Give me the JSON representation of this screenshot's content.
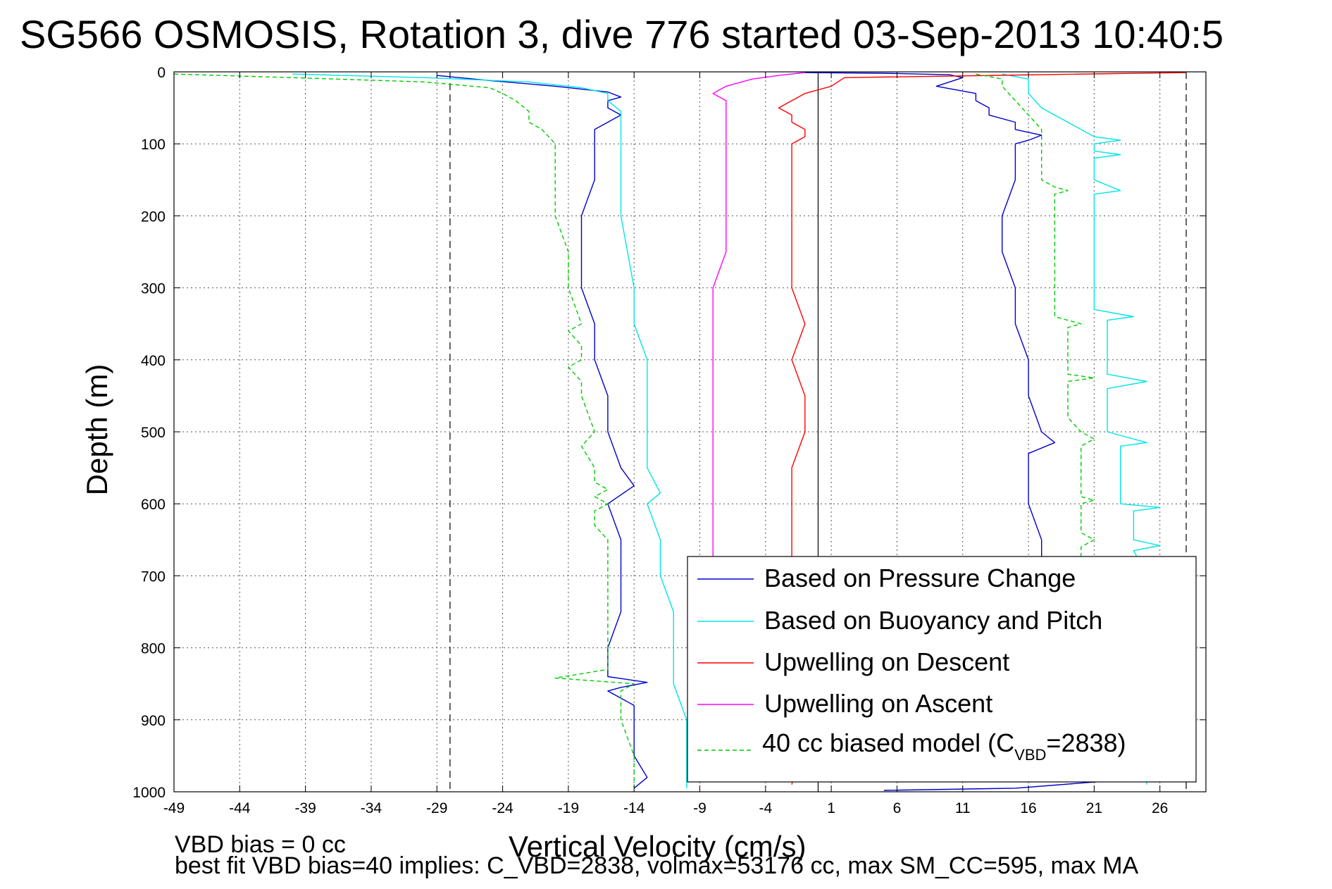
{
  "chart_data": {
    "type": "line",
    "title": "SG566 OSMOSIS, Rotation 3, dive 776 started 03-Sep-2013 10:40:5",
    "xlabel": "Vertical Velocity (cm/s)",
    "ylabel": "Depth (m)",
    "xlim": [
      -49,
      29.5
    ],
    "ylim": [
      0,
      1000
    ],
    "y_reversed": true,
    "grid": true,
    "x_ticks": [
      -49,
      -44,
      -39,
      -34,
      -29,
      -24,
      -19,
      -14,
      -9,
      -4,
      1,
      6,
      11,
      16,
      21,
      26
    ],
    "y_ticks": [
      0,
      100,
      200,
      300,
      400,
      500,
      600,
      700,
      800,
      900,
      1000
    ],
    "reference_lines": {
      "solid_vertical_x": 0,
      "dashed_vertical_x": [
        -28,
        28
      ]
    },
    "legend": {
      "placement": "bottom-right",
      "vbd_label_main": "40 cc biased model (C",
      "vbd_label_sub": "VBD",
      "vbd_label_end": "=2838)"
    },
    "series": [
      {
        "name": "Based on Pressure Change",
        "color": "#0000cc",
        "style": "solid",
        "descent": [
          [
            -29,
            5
          ],
          [
            -25,
            12
          ],
          [
            -20,
            20
          ],
          [
            -16,
            28
          ],
          [
            -15,
            35
          ],
          [
            -16,
            40
          ],
          [
            -16,
            50
          ],
          [
            -15,
            60
          ],
          [
            -16,
            70
          ],
          [
            -17,
            80
          ],
          [
            -17,
            100
          ],
          [
            -17,
            150
          ],
          [
            -18,
            200
          ],
          [
            -18,
            250
          ],
          [
            -18,
            300
          ],
          [
            -17,
            350
          ],
          [
            -17,
            400
          ],
          [
            -16,
            450
          ],
          [
            -16,
            500
          ],
          [
            -15,
            550
          ],
          [
            -14,
            575
          ],
          [
            -16,
            600
          ],
          [
            -15,
            650
          ],
          [
            -15,
            700
          ],
          [
            -15,
            750
          ],
          [
            -16,
            800
          ],
          [
            -16,
            840
          ],
          [
            -13,
            848
          ],
          [
            -15,
            855
          ],
          [
            -16,
            860
          ],
          [
            -14,
            880
          ],
          [
            -14,
            900
          ],
          [
            -14,
            950
          ],
          [
            -13,
            980
          ],
          [
            -14,
            995
          ]
        ],
        "ascent": [
          [
            -1,
            1
          ],
          [
            5,
            2
          ],
          [
            10,
            4
          ],
          [
            11,
            8
          ],
          [
            10,
            14
          ],
          [
            9,
            20
          ],
          [
            12,
            30
          ],
          [
            12,
            40
          ],
          [
            13,
            50
          ],
          [
            13,
            60
          ],
          [
            15,
            70
          ],
          [
            15,
            80
          ],
          [
            17,
            88
          ],
          [
            16,
            95
          ],
          [
            15,
            100
          ],
          [
            15,
            120
          ],
          [
            15,
            150
          ],
          [
            14,
            200
          ],
          [
            14,
            250
          ],
          [
            15,
            300
          ],
          [
            15,
            350
          ],
          [
            16,
            400
          ],
          [
            16,
            450
          ],
          [
            17,
            500
          ],
          [
            18,
            515
          ],
          [
            16,
            530
          ],
          [
            16,
            550
          ],
          [
            16,
            600
          ],
          [
            17,
            650
          ],
          [
            17,
            700
          ],
          [
            18,
            750
          ],
          [
            18,
            800
          ],
          [
            19,
            850
          ],
          [
            20,
            900
          ],
          [
            21,
            950
          ],
          [
            22,
            985
          ],
          [
            15,
            995
          ],
          [
            5,
            998
          ]
        ]
      },
      {
        "name": "Based on Buoyancy and Pitch",
        "color": "#00e5e5",
        "style": "solid",
        "descent": [
          [
            -40,
            3
          ],
          [
            -30,
            8
          ],
          [
            -22,
            14
          ],
          [
            -18,
            22
          ],
          [
            -16,
            30
          ],
          [
            -16,
            40
          ],
          [
            -15,
            55
          ],
          [
            -15,
            70
          ],
          [
            -15,
            100
          ],
          [
            -15,
            150
          ],
          [
            -15,
            200
          ],
          [
            -14,
            300
          ],
          [
            -14,
            350
          ],
          [
            -13,
            400
          ],
          [
            -13,
            450
          ],
          [
            -13,
            500
          ],
          [
            -13,
            550
          ],
          [
            -12,
            585
          ],
          [
            -13,
            600
          ],
          [
            -12,
            650
          ],
          [
            -12,
            700
          ],
          [
            -11,
            750
          ],
          [
            -11,
            800
          ],
          [
            -11,
            850
          ],
          [
            -10,
            900
          ],
          [
            -10,
            950
          ],
          [
            -10,
            980
          ],
          [
            -10,
            995
          ]
        ],
        "ascent": [
          [
            14,
            3
          ],
          [
            16,
            10
          ],
          [
            16,
            30
          ],
          [
            17,
            50
          ],
          [
            19,
            70
          ],
          [
            21,
            90
          ],
          [
            23,
            95
          ],
          [
            21,
            100
          ],
          [
            21,
            110
          ],
          [
            23,
            115
          ],
          [
            21,
            120
          ],
          [
            21,
            150
          ],
          [
            23,
            165
          ],
          [
            21,
            170
          ],
          [
            21,
            200
          ],
          [
            21,
            250
          ],
          [
            21,
            300
          ],
          [
            21,
            330
          ],
          [
            24,
            340
          ],
          [
            22,
            345
          ],
          [
            22,
            400
          ],
          [
            22,
            420
          ],
          [
            25,
            430
          ],
          [
            22,
            440
          ],
          [
            22,
            480
          ],
          [
            22,
            500
          ],
          [
            25,
            515
          ],
          [
            23,
            520
          ],
          [
            23,
            550
          ],
          [
            23,
            600
          ],
          [
            26,
            605
          ],
          [
            24,
            610
          ],
          [
            24,
            650
          ],
          [
            26,
            658
          ],
          [
            24,
            665
          ],
          [
            25,
            700
          ],
          [
            25,
            750
          ],
          [
            25,
            800
          ],
          [
            25,
            900
          ],
          [
            25,
            950
          ],
          [
            25,
            990
          ]
        ]
      },
      {
        "name": "Upwelling on Descent",
        "color": "#ff0000",
        "style": "solid",
        "descent": [
          [
            28,
            1
          ],
          [
            2,
            8
          ],
          [
            1,
            20
          ],
          [
            -1,
            30
          ],
          [
            -2,
            40
          ],
          [
            -3,
            50
          ],
          [
            -2,
            60
          ],
          [
            -2,
            70
          ],
          [
            -1,
            80
          ],
          [
            -1,
            90
          ],
          [
            -2,
            100
          ],
          [
            -2,
            150
          ],
          [
            -2,
            200
          ],
          [
            -2,
            250
          ],
          [
            -2,
            300
          ],
          [
            -1,
            350
          ],
          [
            -2,
            400
          ],
          [
            -1,
            450
          ],
          [
            -1,
            500
          ],
          [
            -2,
            550
          ],
          [
            -2,
            600
          ],
          [
            -2,
            650
          ],
          [
            -2,
            700
          ],
          [
            -1,
            800
          ],
          [
            -1,
            900
          ],
          [
            -2,
            990
          ]
        ]
      },
      {
        "name": "Upwelling on Ascent",
        "color": "#ff00ff",
        "style": "solid",
        "ascent": [
          [
            -1,
            1
          ],
          [
            -3,
            5
          ],
          [
            -5,
            10
          ],
          [
            -7,
            20
          ],
          [
            -8,
            30
          ],
          [
            -7,
            40
          ],
          [
            -7,
            60
          ],
          [
            -7,
            100
          ],
          [
            -7,
            150
          ],
          [
            -7,
            200
          ],
          [
            -7,
            250
          ],
          [
            -8,
            300
          ],
          [
            -8,
            350
          ],
          [
            -8,
            400
          ],
          [
            -8,
            450
          ],
          [
            -8,
            500
          ],
          [
            -8,
            550
          ],
          [
            -8,
            600
          ],
          [
            -8,
            650
          ],
          [
            -8,
            690
          ]
        ]
      },
      {
        "name": "40 cc biased model (C_VBD=2838)",
        "color": "#00cc00",
        "style": "dashed",
        "descent": [
          [
            -49,
            3
          ],
          [
            -40,
            8
          ],
          [
            -30,
            14
          ],
          [
            -25,
            22
          ],
          [
            -24,
            30
          ],
          [
            -23,
            40
          ],
          [
            -22,
            55
          ],
          [
            -22,
            70
          ],
          [
            -21,
            80
          ],
          [
            -20,
            100
          ],
          [
            -20,
            150
          ],
          [
            -20,
            200
          ],
          [
            -19,
            250
          ],
          [
            -19,
            300
          ],
          [
            -18,
            350
          ],
          [
            -19,
            360
          ],
          [
            -18,
            380
          ],
          [
            -18,
            400
          ],
          [
            -19,
            410
          ],
          [
            -18,
            430
          ],
          [
            -18,
            450
          ],
          [
            -17,
            500
          ],
          [
            -18,
            520
          ],
          [
            -17,
            550
          ],
          [
            -17,
            570
          ],
          [
            -16,
            580
          ],
          [
            -17,
            590
          ],
          [
            -16,
            600
          ],
          [
            -17,
            610
          ],
          [
            -17,
            630
          ],
          [
            -16,
            650
          ],
          [
            -16,
            700
          ],
          [
            -16,
            750
          ],
          [
            -16,
            800
          ],
          [
            -16,
            830
          ],
          [
            -20,
            842
          ],
          [
            -14,
            850
          ],
          [
            -15,
            860
          ],
          [
            -15,
            900
          ],
          [
            -14,
            950
          ],
          [
            -14,
            995
          ]
        ],
        "ascent": [
          [
            12,
            3
          ],
          [
            14,
            10
          ],
          [
            14,
            20
          ],
          [
            15,
            40
          ],
          [
            16,
            60
          ],
          [
            17,
            80
          ],
          [
            17,
            100
          ],
          [
            17,
            150
          ],
          [
            18,
            160
          ],
          [
            19,
            165
          ],
          [
            18,
            170
          ],
          [
            18,
            200
          ],
          [
            18,
            250
          ],
          [
            18,
            300
          ],
          [
            18,
            340
          ],
          [
            20,
            350
          ],
          [
            19,
            355
          ],
          [
            19,
            400
          ],
          [
            19,
            420
          ],
          [
            21,
            425
          ],
          [
            19,
            430
          ],
          [
            19,
            480
          ],
          [
            20,
            500
          ],
          [
            21,
            510
          ],
          [
            20,
            520
          ],
          [
            20,
            550
          ],
          [
            20,
            590
          ],
          [
            21,
            595
          ],
          [
            20,
            600
          ],
          [
            20,
            640
          ],
          [
            21,
            650
          ],
          [
            20,
            660
          ],
          [
            20,
            680
          ]
        ]
      }
    ]
  },
  "footer": {
    "line1": "VBD bias = 0 cc",
    "line2": "best fit VBD bias=40 implies: C_VBD=2838, volmax=53176 cc, max SM_CC=595, max MA"
  }
}
